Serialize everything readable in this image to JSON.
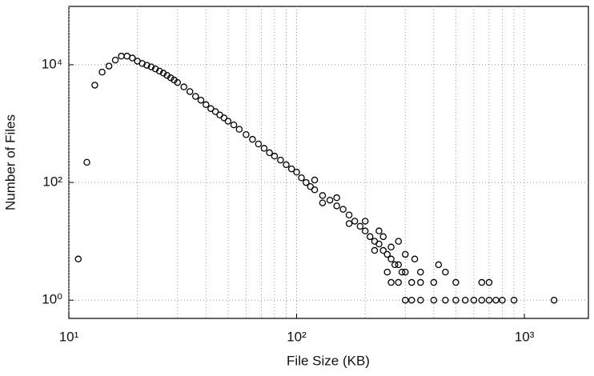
{
  "chart_data": {
    "type": "scatter",
    "log_x": true,
    "log_y": true,
    "grid": true,
    "color": "#000000",
    "xlabel": "File Size (KB)",
    "ylabel": "Number of Files",
    "xlim": [
      10,
      1910
    ],
    "ylim": [
      0.49,
      98000
    ],
    "xticks": [
      {
        "value": 10,
        "label": "10¹"
      },
      {
        "value": 100,
        "label": "10²"
      },
      {
        "value": 1000,
        "label": "10³"
      }
    ],
    "xminorticks": [
      20,
      30,
      40,
      50,
      60,
      70,
      80,
      90,
      200,
      300,
      400,
      500,
      600,
      700,
      800,
      900
    ],
    "yticks": [
      {
        "value": 1,
        "label": "10⁰"
      },
      {
        "value": 100,
        "label": "10²"
      },
      {
        "value": 10000,
        "label": "10⁴"
      }
    ],
    "x": [
      11,
      12,
      13,
      14,
      15,
      16,
      17,
      18,
      19,
      20,
      21,
      22,
      23,
      24,
      25,
      26,
      27,
      28,
      29,
      30,
      32,
      34,
      36,
      38,
      40,
      42,
      44,
      46,
      48,
      50,
      53,
      56,
      60,
      64,
      68,
      72,
      76,
      80,
      85,
      90,
      95,
      100,
      105,
      110,
      115,
      120,
      130,
      140,
      150,
      160,
      170,
      180,
      190,
      200,
      210,
      220,
      230,
      240,
      250,
      260,
      270,
      280,
      290,
      300,
      320,
      350,
      120,
      130,
      150,
      170,
      200,
      220,
      240,
      250,
      260,
      280,
      300,
      330,
      350,
      400,
      420,
      450,
      500,
      650,
      700,
      300,
      320,
      350,
      400,
      450,
      500,
      550,
      600,
      650,
      700,
      750,
      800,
      900,
      1350,
      280,
      260,
      230
    ],
    "values": [
      5,
      220,
      4500,
      7500,
      9500,
      12000,
      14000,
      14000,
      13000,
      11500,
      10500,
      9800,
      9200,
      8500,
      7800,
      7200,
      6600,
      6000,
      5500,
      5000,
      4200,
      3500,
      2900,
      2500,
      2100,
      1800,
      1600,
      1400,
      1250,
      1100,
      950,
      800,
      650,
      540,
      450,
      380,
      320,
      280,
      240,
      200,
      170,
      150,
      120,
      100,
      85,
      75,
      60,
      50,
      40,
      35,
      28,
      22,
      18,
      15,
      12,
      10,
      9,
      7,
      6,
      5,
      4,
      4,
      3,
      3,
      2,
      2,
      110,
      45,
      55,
      20,
      22,
      7,
      12,
      3,
      8,
      2,
      6,
      5,
      3,
      2,
      4,
      3,
      2,
      2,
      2,
      1,
      1,
      1,
      1,
      1,
      1,
      1,
      1,
      1,
      1,
      1,
      1,
      1,
      1,
      10,
      2,
      15
    ]
  }
}
